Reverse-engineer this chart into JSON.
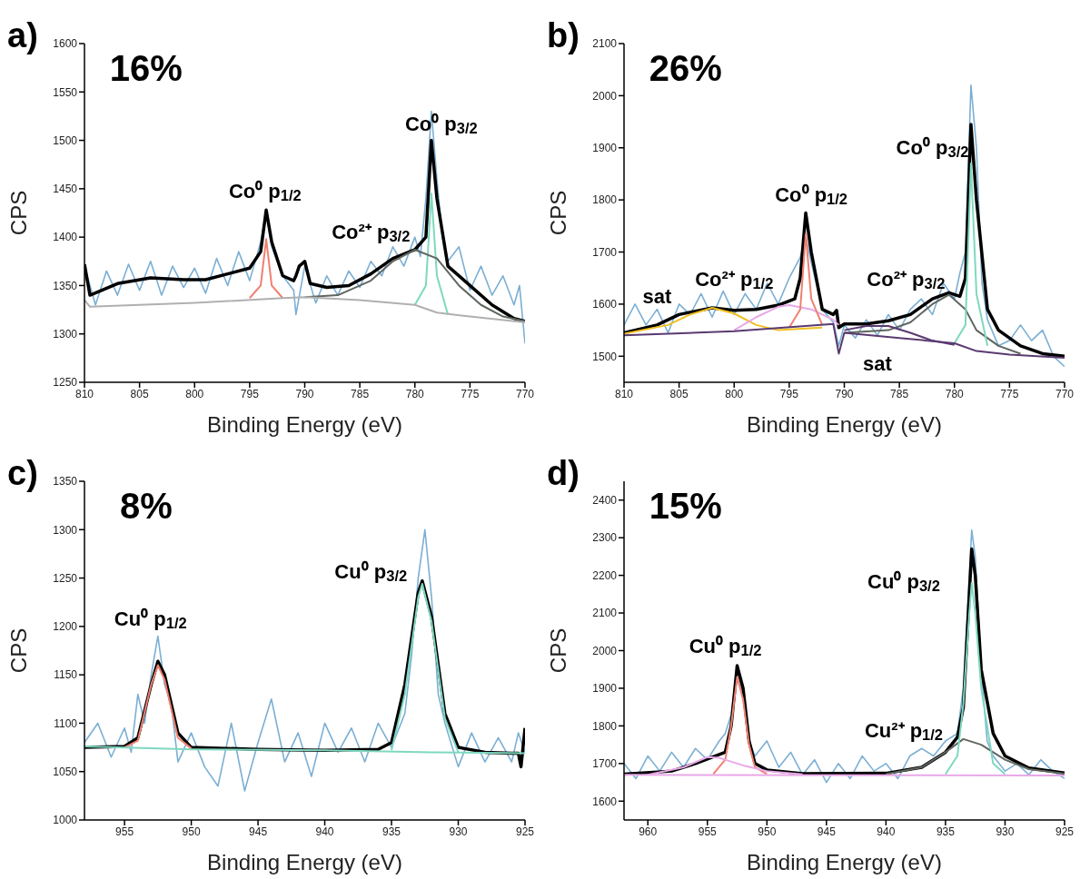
{
  "chart_data": [
    {
      "type": "line",
      "title": "a)",
      "xlabel": "Binding Energy (eV)",
      "ylabel": "CPS",
      "xlim": [
        810,
        770
      ],
      "xticks": [
        810,
        805,
        800,
        795,
        790,
        785,
        780,
        775,
        770
      ],
      "ylim": [
        1250,
        1600
      ],
      "yticks": [
        1250,
        1300,
        1350,
        1400,
        1450,
        1500,
        1550,
        1600
      ],
      "series": [
        {
          "color": "#7bafd4",
          "x": [
            810,
            809,
            808,
            807,
            806,
            805,
            804,
            803,
            802,
            801,
            800,
            799,
            798,
            797,
            796,
            795,
            794,
            793.5,
            793,
            792,
            791,
            790.8,
            790,
            789,
            788,
            787,
            786,
            785,
            784,
            783,
            782,
            781,
            780,
            779.5,
            779,
            778.5,
            778,
            777.5,
            777,
            776,
            775,
            774,
            773,
            772,
            771,
            770.5,
            770
          ],
          "values": [
            1370,
            1330,
            1365,
            1340,
            1372,
            1345,
            1375,
            1340,
            1370,
            1348,
            1368,
            1342,
            1378,
            1350,
            1385,
            1355,
            1395,
            1425,
            1390,
            1360,
            1345,
            1320,
            1370,
            1332,
            1360,
            1340,
            1365,
            1348,
            1375,
            1360,
            1390,
            1370,
            1400,
            1380,
            1440,
            1530,
            1460,
            1400,
            1375,
            1390,
            1345,
            1370,
            1340,
            1360,
            1330,
            1350,
            1290
          ]
        },
        {
          "color": "#000000",
          "x": [
            810,
            809.5,
            807,
            804,
            801,
            799,
            797,
            795,
            794,
            793.5,
            793,
            792,
            791,
            790.8,
            790.5,
            790,
            789.5,
            788,
            786,
            784,
            782,
            780,
            779,
            778.5,
            778,
            777,
            775,
            773,
            771,
            770
          ],
          "values": [
            1372,
            1340,
            1352,
            1358,
            1356,
            1356,
            1362,
            1368,
            1385,
            1428,
            1395,
            1360,
            1355,
            1360,
            1370,
            1375,
            1352,
            1348,
            1350,
            1362,
            1378,
            1387,
            1400,
            1500,
            1440,
            1370,
            1350,
            1330,
            1316,
            1313
          ]
        },
        {
          "color": "#f08070",
          "x": [
            795,
            794,
            793.5,
            793,
            792
          ],
          "values": [
            1337,
            1350,
            1398,
            1350,
            1337
          ]
        },
        {
          "color": "#7fd8c0",
          "x": [
            780,
            779,
            778.5,
            778,
            777
          ],
          "values": [
            1330,
            1350,
            1445,
            1360,
            1320
          ]
        },
        {
          "color": "#5f665f",
          "x": [
            790,
            787,
            784,
            782,
            780,
            778,
            776,
            774,
            772,
            770
          ],
          "values": [
            1338,
            1340,
            1355,
            1375,
            1387,
            1378,
            1350,
            1330,
            1318,
            1313
          ]
        },
        {
          "color": "#b0b0b0",
          "x": [
            810,
            809.5,
            800,
            792,
            790,
            785,
            780,
            778,
            775,
            770
          ],
          "values": [
            1335,
            1328,
            1332,
            1337,
            1338,
            1335,
            1330,
            1322,
            1318,
            1312
          ]
        }
      ],
      "annotations": [
        "16%",
        "Co⁰ p$_{1/2}$",
        "Co²⁺ p$_{3/2}$",
        "Co⁰ p$_{3/2}$"
      ]
    },
    {
      "type": "line",
      "title": "b)",
      "xlabel": "Binding Energy (eV)",
      "ylabel": "CPS",
      "xlim": [
        810,
        770
      ],
      "xticks": [
        810,
        805,
        800,
        795,
        790,
        785,
        780,
        775,
        770
      ],
      "ylim": [
        1450,
        2100
      ],
      "yticks": [
        1500,
        1600,
        1700,
        1800,
        1900,
        2000,
        2100
      ],
      "series": [
        {
          "color": "#7bafd4",
          "x": [
            810,
            809,
            808,
            807,
            806,
            805,
            804,
            803,
            802,
            801,
            800,
            799,
            798,
            797,
            796,
            795,
            794,
            793.5,
            793,
            792,
            791,
            790.5,
            790,
            789,
            788,
            787,
            786,
            785,
            784,
            783,
            782,
            781,
            780,
            779.5,
            779,
            778.5,
            778,
            777.5,
            777,
            776,
            775,
            774,
            773,
            772,
            771,
            770
          ],
          "values": [
            1560,
            1600,
            1560,
            1590,
            1545,
            1600,
            1580,
            1620,
            1575,
            1625,
            1580,
            1620,
            1590,
            1640,
            1600,
            1650,
            1690,
            1730,
            1680,
            1590,
            1565,
            1520,
            1560,
            1535,
            1570,
            1540,
            1580,
            1550,
            1590,
            1610,
            1580,
            1640,
            1610,
            1660,
            1700,
            2020,
            1900,
            1640,
            1570,
            1520,
            1530,
            1560,
            1530,
            1550,
            1500,
            1480
          ]
        },
        {
          "color": "#000000",
          "x": [
            810,
            807,
            805,
            802,
            800,
            798,
            796,
            794.5,
            794,
            793.5,
            793,
            792,
            791,
            790.7,
            790.5,
            790,
            788,
            786,
            784,
            782,
            780.5,
            779.5,
            779,
            778.5,
            778,
            777,
            776,
            774,
            772,
            770
          ],
          "values": [
            1545,
            1560,
            1580,
            1593,
            1588,
            1590,
            1598,
            1610,
            1650,
            1775,
            1700,
            1590,
            1580,
            1588,
            1555,
            1562,
            1562,
            1568,
            1580,
            1610,
            1622,
            1615,
            1650,
            1945,
            1800,
            1590,
            1550,
            1520,
            1505,
            1500
          ]
        },
        {
          "color": "#f0c020",
          "x": [
            810,
            806,
            804,
            802,
            800,
            798,
            796,
            792
          ],
          "values": [
            1543,
            1560,
            1580,
            1593,
            1582,
            1560,
            1550,
            1555
          ]
        },
        {
          "color": "#e8a8e8",
          "x": [
            800,
            798,
            796,
            795,
            793,
            791,
            790.5
          ],
          "values": [
            1550,
            1575,
            1595,
            1598,
            1590,
            1570,
            1560
          ]
        },
        {
          "color": "#f08070",
          "x": [
            795,
            794,
            793.5,
            793,
            792
          ],
          "values": [
            1555,
            1590,
            1735,
            1610,
            1560
          ]
        },
        {
          "color": "#5f665f",
          "x": [
            790,
            786,
            784,
            782,
            780.5,
            779,
            778,
            776,
            774
          ],
          "values": [
            1545,
            1550,
            1565,
            1600,
            1618,
            1590,
            1550,
            1520,
            1505
          ]
        },
        {
          "color": "#7fd8c0",
          "x": [
            780,
            779,
            778.5,
            778,
            777
          ],
          "values": [
            1525,
            1560,
            1870,
            1620,
            1520
          ]
        },
        {
          "color": "#5a3a70",
          "x": [
            790,
            788,
            786,
            784,
            782,
            780
          ],
          "values": [
            1550,
            1558,
            1558,
            1545,
            1530,
            1522
          ]
        },
        {
          "color": "#5a3a70",
          "x": [
            810,
            800,
            791,
            790.5,
            790,
            785,
            780,
            778,
            775,
            770
          ],
          "values": [
            1540,
            1548,
            1562,
            1505,
            1545,
            1535,
            1525,
            1510,
            1503,
            1497
          ]
        }
      ],
      "annotations": [
        "26%",
        "Co⁰ p$_{3/2}$",
        "Co⁰ p$_{1/2}$",
        "Co²⁺ p$_{1/2}$",
        "Co²⁺ p$_{3/2}$",
        "sat",
        "sat"
      ]
    },
    {
      "type": "line",
      "title": "c)",
      "xlabel": "Binding Energy (eV)",
      "ylabel": "CPS",
      "xlim": [
        958,
        925
      ],
      "xticks": [
        955,
        950,
        945,
        940,
        935,
        930,
        925
      ],
      "ylim": [
        1000,
        1350
      ],
      "yticks": [
        1000,
        1050,
        1100,
        1150,
        1200,
        1250,
        1300,
        1350
      ],
      "series": [
        {
          "color": "#7bafd4",
          "x": [
            958,
            957,
            956,
            955,
            954.5,
            954,
            953.5,
            953,
            952.5,
            952,
            951.5,
            951,
            950,
            949,
            948,
            947,
            946,
            945,
            944,
            943,
            942,
            941,
            940,
            939,
            938,
            937,
            936,
            935,
            934,
            933.5,
            933,
            932.5,
            932,
            931.5,
            931,
            930,
            929,
            928,
            927,
            926,
            925.5,
            925
          ],
          "values": [
            1080,
            1100,
            1065,
            1095,
            1070,
            1130,
            1100,
            1150,
            1190,
            1140,
            1120,
            1060,
            1090,
            1055,
            1035,
            1100,
            1030,
            1080,
            1125,
            1060,
            1090,
            1045,
            1100,
            1070,
            1095,
            1060,
            1100,
            1075,
            1110,
            1170,
            1250,
            1300,
            1230,
            1130,
            1100,
            1055,
            1090,
            1060,
            1085,
            1060,
            1090,
            1070
          ]
        },
        {
          "color": "#000000",
          "x": [
            958,
            955,
            954,
            953,
            952.5,
            952,
            951,
            950,
            945,
            940,
            936,
            935,
            934,
            933,
            932.7,
            932,
            931,
            930,
            928,
            926,
            925.5,
            925.3,
            925
          ],
          "values": [
            1075,
            1076,
            1085,
            1140,
            1164,
            1150,
            1090,
            1075,
            1073,
            1072,
            1073,
            1080,
            1140,
            1235,
            1247,
            1210,
            1110,
            1075,
            1070,
            1069,
            1069,
            1055,
            1095
          ]
        },
        {
          "color": "#f08070",
          "x": [
            955,
            954,
            953,
            952.5,
            952,
            951,
            950
          ],
          "values": [
            1075,
            1082,
            1140,
            1160,
            1145,
            1085,
            1074
          ]
        },
        {
          "color": "#7fd8c0",
          "x": [
            935,
            934,
            933,
            932.7,
            932,
            931,
            930
          ],
          "values": [
            1072,
            1130,
            1230,
            1244,
            1205,
            1105,
            1070
          ]
        },
        {
          "color": "#7fd8c0",
          "x": [
            958,
            950,
            940,
            932,
            925
          ],
          "values": [
            1076,
            1073,
            1072,
            1070,
            1069
          ]
        }
      ],
      "annotations": [
        "8%",
        "Cu⁰ p$_{1/2}$",
        "Cu⁰ p$_{3/2}$"
      ]
    },
    {
      "type": "line",
      "title": "d)",
      "xlabel": "Binding Energy (eV)",
      "ylabel": "CPS",
      "xlim": [
        962,
        925
      ],
      "xticks": [
        960,
        955,
        950,
        945,
        940,
        935,
        930,
        925
      ],
      "ylim": [
        1550,
        2450
      ],
      "yticks": [
        1600,
        1700,
        1800,
        1900,
        2000,
        2100,
        2200,
        2300,
        2400
      ],
      "series": [
        {
          "color": "#7bafd4",
          "x": [
            962,
            961,
            960,
            959,
            958,
            957,
            956,
            955,
            954,
            953.5,
            953,
            952.5,
            952,
            951.5,
            951,
            950,
            949,
            948,
            947,
            946,
            945,
            944,
            943,
            942,
            941,
            940,
            939,
            938,
            937,
            936,
            935,
            934,
            933.5,
            933,
            932.8,
            932.5,
            932,
            931.5,
            931,
            930,
            929,
            928,
            927,
            926,
            925
          ],
          "values": [
            1700,
            1660,
            1720,
            1680,
            1730,
            1690,
            1740,
            1710,
            1760,
            1780,
            1830,
            1950,
            1880,
            1760,
            1720,
            1760,
            1690,
            1730,
            1670,
            1710,
            1650,
            1700,
            1660,
            1720,
            1680,
            1700,
            1660,
            1720,
            1740,
            1720,
            1760,
            1780,
            1900,
            2200,
            2320,
            2250,
            1950,
            1760,
            1720,
            1680,
            1700,
            1670,
            1710,
            1680,
            1660
          ]
        },
        {
          "color": "#000000",
          "x": [
            962,
            958,
            956,
            954.5,
            953.5,
            953,
            952.5,
            952,
            951.5,
            951,
            950,
            947,
            940,
            937,
            935,
            934,
            933.5,
            933,
            932.8,
            932.5,
            932,
            931,
            930,
            928,
            925
          ],
          "values": [
            1672,
            1680,
            1700,
            1718,
            1730,
            1800,
            1960,
            1900,
            1760,
            1700,
            1683,
            1673,
            1674,
            1690,
            1730,
            1770,
            1850,
            2150,
            2270,
            2200,
            1950,
            1780,
            1720,
            1688,
            1675
          ]
        },
        {
          "color": "#f08070",
          "x": [
            954.5,
            953.5,
            953,
            952.5,
            952,
            951.5,
            951,
            950
          ],
          "values": [
            1672,
            1710,
            1800,
            1930,
            1870,
            1750,
            1690,
            1672
          ]
        },
        {
          "color": "#e8a8e8",
          "x": [
            960,
            957,
            955,
            954,
            952,
            950,
            947
          ],
          "values": [
            1670,
            1690,
            1717,
            1715,
            1695,
            1680,
            1671
          ]
        },
        {
          "color": "#5f665f",
          "x": [
            940,
            937,
            935,
            933.5,
            932,
            930,
            928,
            925
          ],
          "values": [
            1672,
            1690,
            1730,
            1765,
            1750,
            1710,
            1685,
            1673
          ]
        },
        {
          "color": "#7fd8c0",
          "x": [
            935,
            934,
            933.5,
            933,
            932.8,
            932.5,
            932,
            931,
            930
          ],
          "values": [
            1672,
            1720,
            1860,
            2100,
            2180,
            2100,
            1900,
            1700,
            1672
          ]
        },
        {
          "color": "#e8a8e8",
          "x": [
            962,
            925
          ],
          "values": [
            1670,
            1668
          ]
        }
      ],
      "annotations": [
        "15%",
        "Cu⁰ p$_{1/2}$",
        "Cu⁰ p$_{3/2}$",
        "Cu²⁺ p$_{1/2}$"
      ]
    }
  ]
}
